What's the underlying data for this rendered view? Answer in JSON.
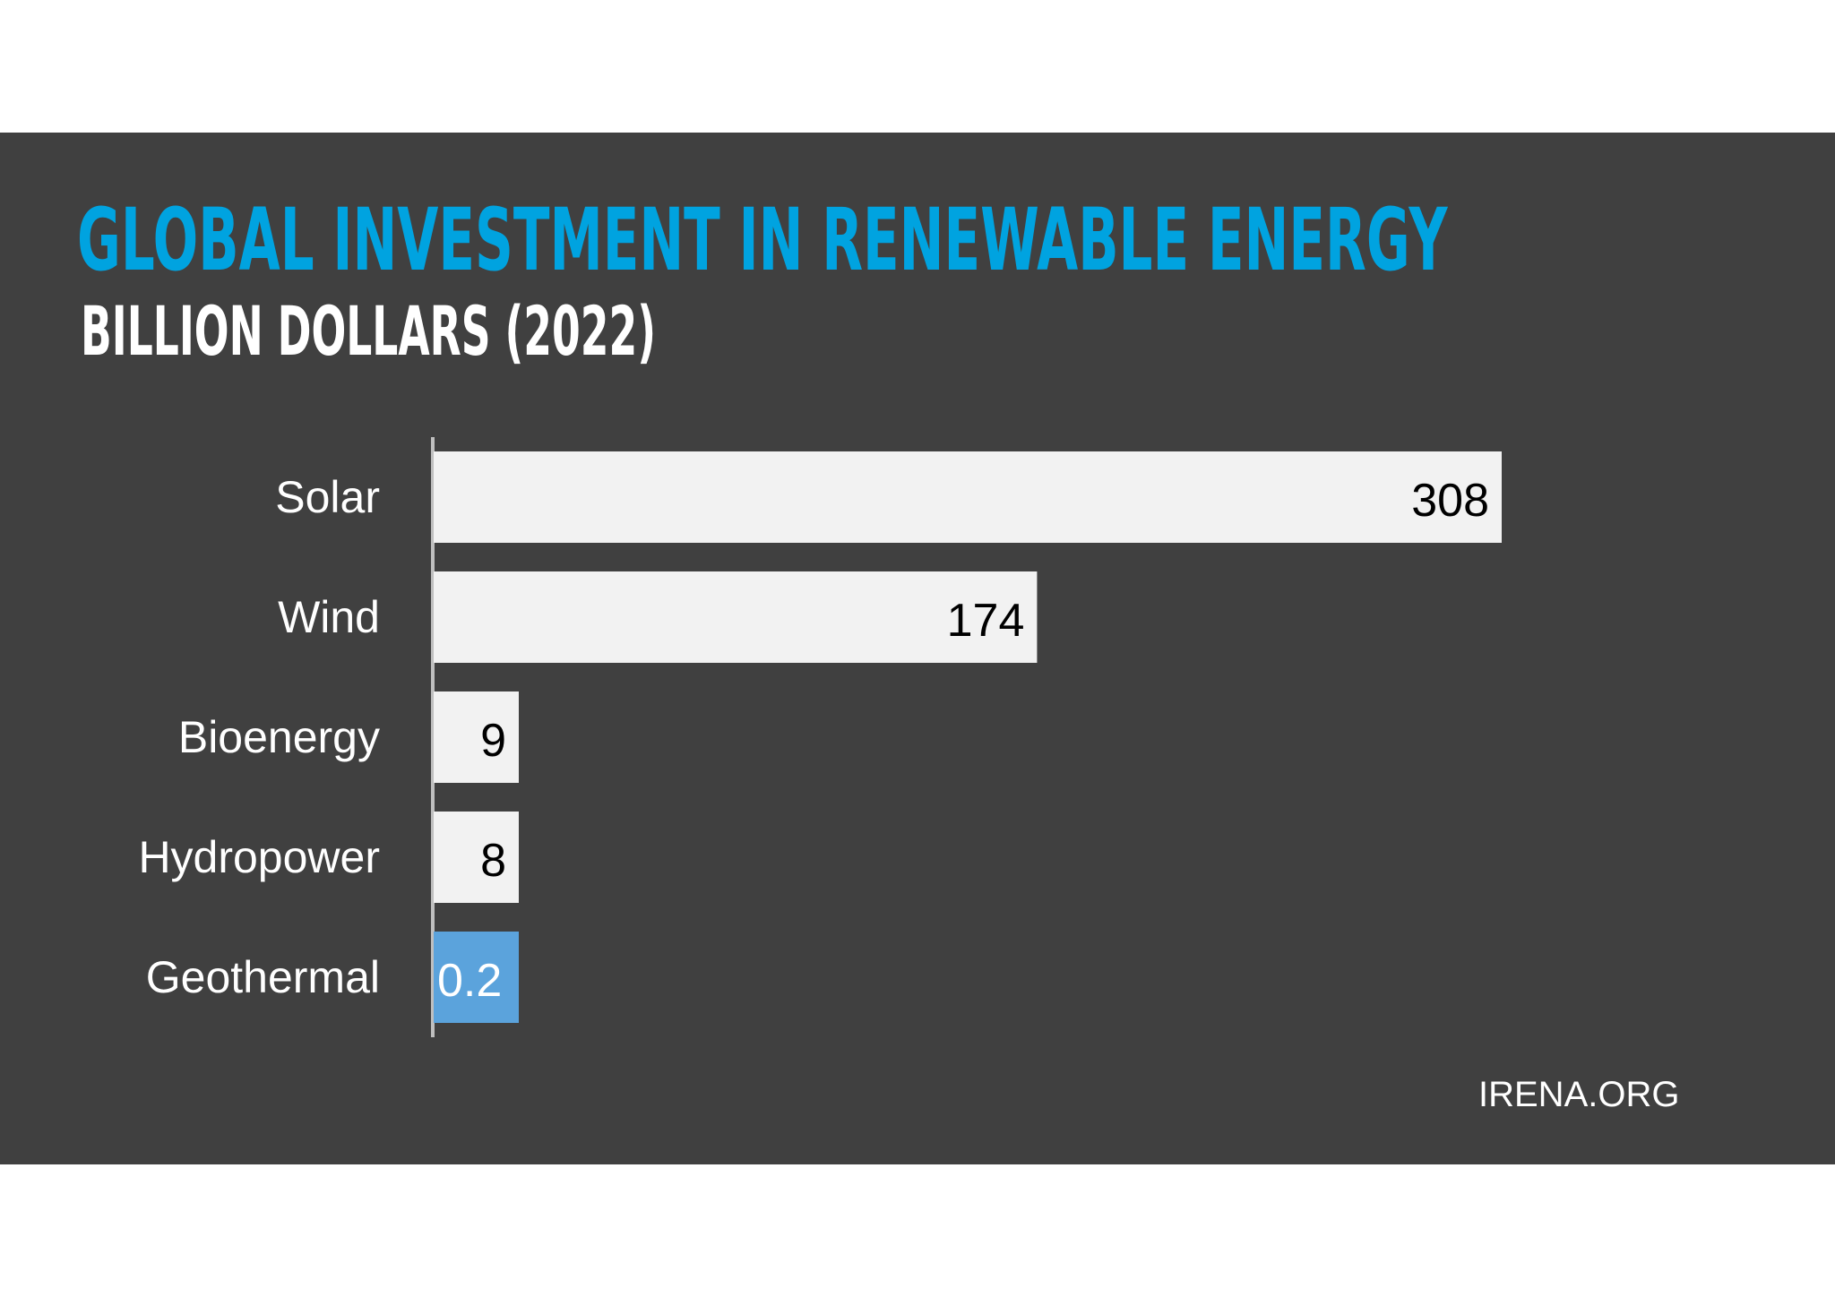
{
  "colors": {
    "background": "#404040",
    "title": "#00A3E0",
    "bar": "#F2F2F2",
    "bar_highlight": "#5BA3DC",
    "axis": "#BFBFBF",
    "text": "#FFFFFF",
    "value_text_dark": "#000000"
  },
  "source": "IRENA.ORG",
  "chart_data": {
    "type": "bar",
    "orientation": "horizontal",
    "title": "GLOBAL INVESTMENT IN RENEWABLE ENERGY",
    "subtitle": "BILLION DOLLARS (2022)",
    "categories": [
      "Solar",
      "Wind",
      "Bioenergy",
      "Hydropower",
      "Geothermal"
    ],
    "values": [
      308,
      174,
      9,
      8,
      0.2
    ],
    "value_labels": [
      "308",
      "174",
      "9",
      "8",
      "0.2"
    ],
    "highlight": "Geothermal",
    "grid": false,
    "legend": "none"
  }
}
